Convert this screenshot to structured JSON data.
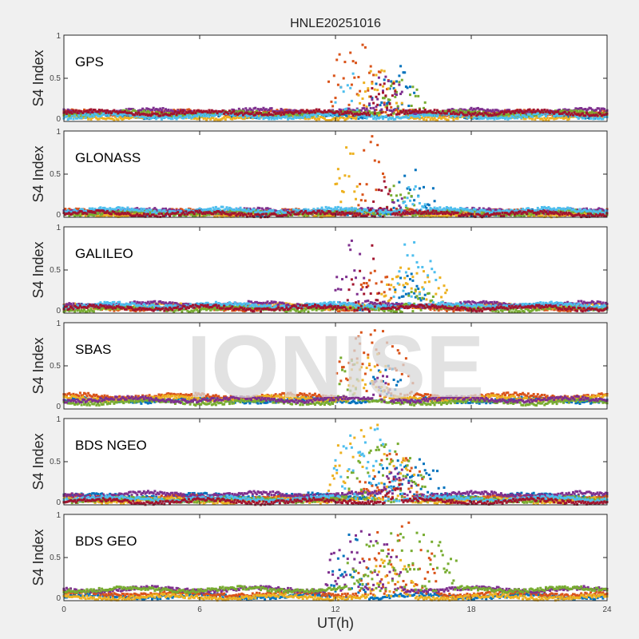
{
  "chart_data": {
    "type": "scatter",
    "title": "HNLE20251016",
    "xlabel": "UT(h)",
    "ylabel": "S4 Index",
    "xlim": [
      0,
      24
    ],
    "ylim": [
      0,
      1
    ],
    "xticks": [
      "0",
      "6",
      "12",
      "18",
      "24"
    ],
    "yticks": [
      "0",
      "0.5",
      "1"
    ],
    "watermark": "IONISE",
    "colors": [
      "#0072BD",
      "#D95319",
      "#EDB120",
      "#7E2F8E",
      "#77AC30",
      "#4DBEEE",
      "#A2142F"
    ],
    "panels": [
      {
        "name": "GPS",
        "series": [
          {
            "color": 0,
            "baseline": 0.07,
            "storm": [
              13.5,
              15.5
            ],
            "peak": 0.7
          },
          {
            "color": 1,
            "baseline": 0.1,
            "storm": [
              11.5,
              14.5
            ],
            "peak": 0.95
          },
          {
            "color": 2,
            "baseline": 0.05,
            "storm": [
              13.0,
              15.0
            ],
            "peak": 0.7
          },
          {
            "color": 3,
            "baseline": 0.12,
            "storm": [
              13.5,
              15.0
            ],
            "peak": 0.6
          },
          {
            "color": 4,
            "baseline": 0.09,
            "storm": [
              14.0,
              16.0
            ],
            "peak": 0.5
          },
          {
            "color": 5,
            "baseline": 0.06,
            "storm": [
              12.0,
              13.0
            ],
            "peak": 0.85
          },
          {
            "color": 6,
            "baseline": 0.1,
            "storm": [
              13.5,
              14.8
            ],
            "peak": 0.6
          }
        ]
      },
      {
        "name": "GLONASS",
        "series": [
          {
            "color": 0,
            "baseline": 0.05,
            "storm": [
              14.5,
              16.5
            ],
            "peak": 0.55
          },
          {
            "color": 1,
            "baseline": 0.06,
            "storm": [
              13.0,
              14.2
            ],
            "peak": 0.95
          },
          {
            "color": 2,
            "baseline": 0.04,
            "storm": [
              12.0,
              13.0
            ],
            "peak": 0.95
          },
          {
            "color": 3,
            "baseline": 0.07,
            "storm": [
              14.5,
              15.0
            ],
            "peak": 0.3
          },
          {
            "color": 4,
            "baseline": 0.05,
            "storm": [
              14.0,
              15.5
            ],
            "peak": 0.4
          },
          {
            "color": 5,
            "baseline": 0.08,
            "storm": [
              15.0,
              16.0
            ],
            "peak": 0.4
          },
          {
            "color": 6,
            "baseline": 0.04,
            "storm": [
              13.5,
              14.5
            ],
            "peak": 0.5
          }
        ]
      },
      {
        "name": "GALILEO",
        "series": [
          {
            "color": 0,
            "baseline": 0.07,
            "storm": [
              14.5,
              16.0
            ],
            "peak": 0.5
          },
          {
            "color": 1,
            "baseline": 0.06,
            "storm": [
              13.0,
              14.5
            ],
            "peak": 0.6
          },
          {
            "color": 2,
            "baseline": 0.08,
            "storm": [
              14.0,
              17.0
            ],
            "peak": 0.6
          },
          {
            "color": 3,
            "baseline": 0.1,
            "storm": [
              12.0,
              13.5
            ],
            "peak": 0.95
          },
          {
            "color": 4,
            "baseline": 0.05,
            "storm": [
              15.0,
              16.5
            ],
            "peak": 0.3
          },
          {
            "color": 5,
            "baseline": 0.09,
            "storm": [
              14.5,
              16.5
            ],
            "peak": 0.9
          },
          {
            "color": 6,
            "baseline": 0.06,
            "storm": [
              12.5,
              14.0
            ],
            "peak": 0.95
          }
        ]
      },
      {
        "name": "SBAS",
        "series": [
          {
            "color": 0,
            "baseline": 0.1,
            "storm": [
              13.5,
              15.0
            ],
            "peak": 0.6
          },
          {
            "color": 1,
            "baseline": 0.15,
            "storm": [
              12.0,
              15.5
            ],
            "peak": 0.95
          },
          {
            "color": 2,
            "baseline": 0.12,
            "storm": [
              12.5,
              14.5
            ],
            "peak": 0.7
          },
          {
            "color": 4,
            "baseline": 0.08,
            "storm": [
              12.0,
              13.0
            ],
            "peak": 0.7
          },
          {
            "color": 3,
            "baseline": 0.11,
            "storm": [
              13.5,
              14.5
            ],
            "peak": 0.5
          }
        ]
      },
      {
        "name": "BDS NGEO",
        "series": [
          {
            "color": 0,
            "baseline": 0.1,
            "storm": [
              13.5,
              17.0
            ],
            "peak": 0.55
          },
          {
            "color": 1,
            "baseline": 0.08,
            "storm": [
              13.0,
              16.0
            ],
            "peak": 0.6
          },
          {
            "color": 2,
            "baseline": 0.05,
            "storm": [
              11.5,
              15.5
            ],
            "peak": 0.95
          },
          {
            "color": 3,
            "baseline": 0.12,
            "storm": [
              14.0,
              15.5
            ],
            "peak": 0.45
          },
          {
            "color": 4,
            "baseline": 0.06,
            "storm": [
              12.5,
              16.0
            ],
            "peak": 0.75
          },
          {
            "color": 5,
            "baseline": 0.07,
            "storm": [
              11.8,
              15.0
            ],
            "peak": 0.95
          },
          {
            "color": 6,
            "baseline": 0.04,
            "storm": [
              14.0,
              15.0
            ],
            "peak": 0.3
          }
        ]
      },
      {
        "name": "BDS GEO",
        "series": [
          {
            "color": 0,
            "baseline": 0.05,
            "storm": [
              11.8,
              13.5
            ],
            "peak": 0.8
          },
          {
            "color": 1,
            "baseline": 0.08,
            "storm": [
              13.0,
              16.5
            ],
            "peak": 0.95
          },
          {
            "color": 2,
            "baseline": 0.04,
            "storm": [
              13.5,
              15.5
            ],
            "peak": 0.6
          },
          {
            "color": 3,
            "baseline": 0.13,
            "storm": [
              11.5,
              15.0
            ],
            "peak": 0.85
          },
          {
            "color": 4,
            "baseline": 0.13,
            "storm": [
              12.5,
              17.5
            ],
            "peak": 0.9
          }
        ]
      }
    ]
  }
}
